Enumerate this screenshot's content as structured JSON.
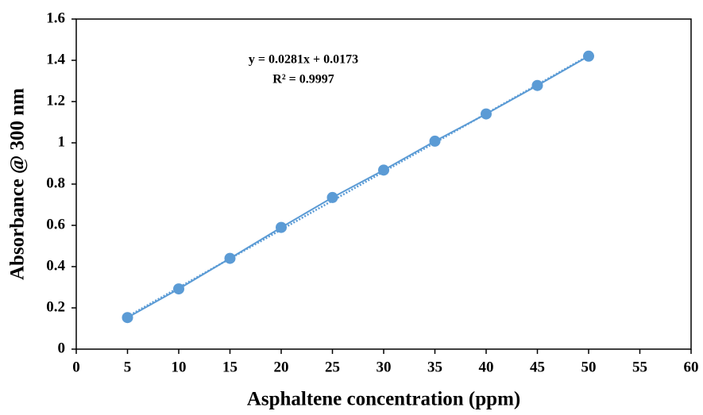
{
  "chart_data": {
    "type": "scatter",
    "x_label": "Asphaltene concentration (ppm)",
    "y_label": "Absorbance @ 300 nm",
    "x": [
      5,
      10,
      15,
      20,
      25,
      30,
      35,
      40,
      45,
      50
    ],
    "series": [
      {
        "color": "#5b9bd5",
        "values": [
          0.153,
          0.292,
          0.44,
          0.59,
          0.735,
          0.868,
          1.008,
          1.14,
          1.278,
          1.42
        ]
      }
    ],
    "trendline": {
      "slope": 0.0281,
      "intercept": 0.0173,
      "equation": "y = 0.0281x + 0.0173",
      "r_squared": "R² = 0.9997"
    },
    "xlim": [
      0,
      60
    ],
    "xticks": [
      0,
      5,
      10,
      15,
      20,
      25,
      30,
      35,
      40,
      45,
      50,
      55,
      60
    ],
    "ylim": [
      0,
      1.6
    ],
    "yticks": [
      0,
      0.2,
      0.4,
      0.6,
      0.8,
      1,
      1.2,
      1.4,
      1.6
    ]
  }
}
